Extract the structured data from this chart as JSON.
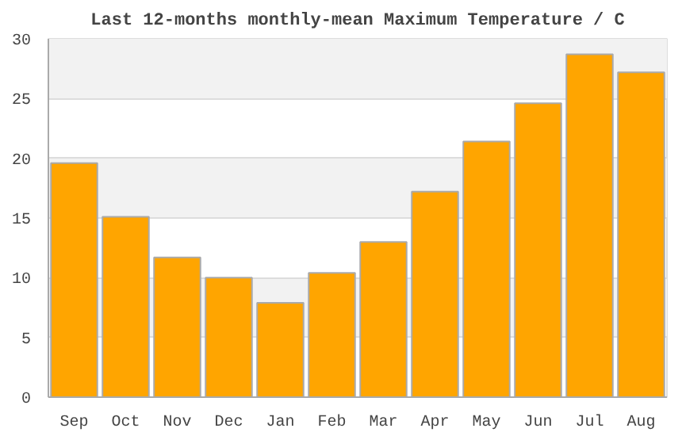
{
  "chart_data": {
    "type": "bar",
    "title": "Last 12-months monthly-mean Maximum Temperature / C",
    "categories": [
      "Sep",
      "Oct",
      "Nov",
      "Dec",
      "Jan",
      "Feb",
      "Mar",
      "Apr",
      "May",
      "Jun",
      "Jul",
      "Aug"
    ],
    "values": [
      19.6,
      15.1,
      11.7,
      10.0,
      7.9,
      10.4,
      13.0,
      17.2,
      21.4,
      24.6,
      28.7,
      27.2
    ],
    "color": "#ffa500",
    "ylim": [
      0,
      30
    ],
    "yticks": [
      0,
      5,
      10,
      15,
      20,
      25,
      30
    ],
    "grid": "y"
  }
}
